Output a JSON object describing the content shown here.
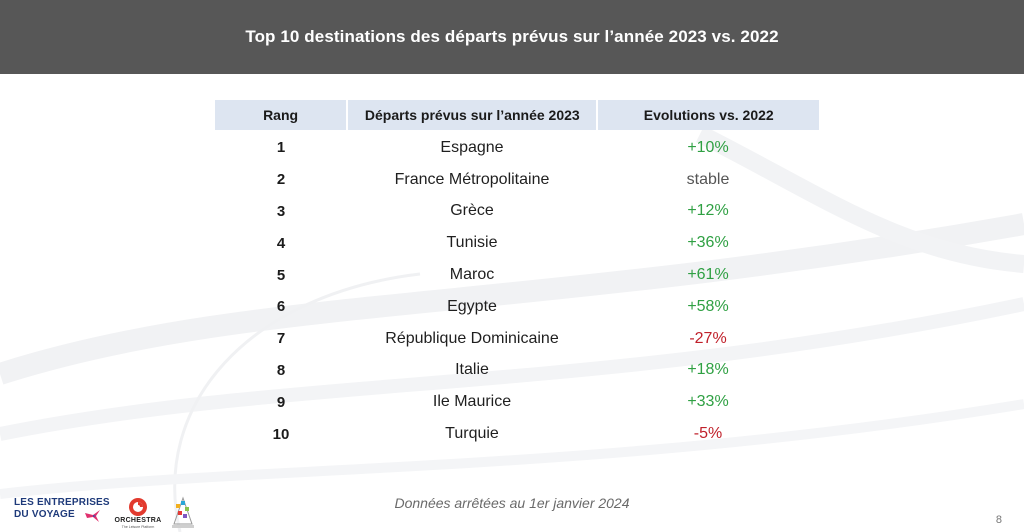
{
  "header": {
    "title": "Top 10 destinations des départs prévus sur l’année 2023 vs. 2022"
  },
  "table": {
    "columns": [
      "Rang",
      "Départs prévus sur l’année 2023",
      "Evolutions vs. 2022"
    ],
    "rows": [
      {
        "rank": "1",
        "destination": "Espagne",
        "evolution": "+10%",
        "trend": "positive"
      },
      {
        "rank": "2",
        "destination": "France Métropolitaine",
        "evolution": "stable",
        "trend": "neutral"
      },
      {
        "rank": "3",
        "destination": "Grèce",
        "evolution": "+12%",
        "trend": "positive"
      },
      {
        "rank": "4",
        "destination": "Tunisie",
        "evolution": "+36%",
        "trend": "positive"
      },
      {
        "rank": "5",
        "destination": "Maroc",
        "evolution": "+61%",
        "trend": "positive"
      },
      {
        "rank": "6",
        "destination": "Egypte",
        "evolution": "+58%",
        "trend": "positive"
      },
      {
        "rank": "7",
        "destination": "République Dominicaine",
        "evolution": "-27%",
        "trend": "negative"
      },
      {
        "rank": "8",
        "destination": "Italie",
        "evolution": "+18%",
        "trend": "positive"
      },
      {
        "rank": "9",
        "destination": "Ile Maurice",
        "evolution": "+33%",
        "trend": "positive"
      },
      {
        "rank": "10",
        "destination": "Turquie",
        "evolution": "-5%",
        "trend": "negative"
      }
    ]
  },
  "footer": {
    "note": "Données arrêtées au 1er janvier 2024",
    "page_number": "8",
    "logos": {
      "edv_line1": "LES ENTREPRISES",
      "edv_line2": "DU VOYAGE",
      "orchestra_name": "ORCHESTRA",
      "orchestra_tagline": "The Leisure Platform"
    }
  },
  "colors": {
    "header_bg": "#575757",
    "table_header_bg": "#dde5f1",
    "positive": "#2fa043",
    "negative": "#c0202a",
    "neutral": "#555555"
  }
}
